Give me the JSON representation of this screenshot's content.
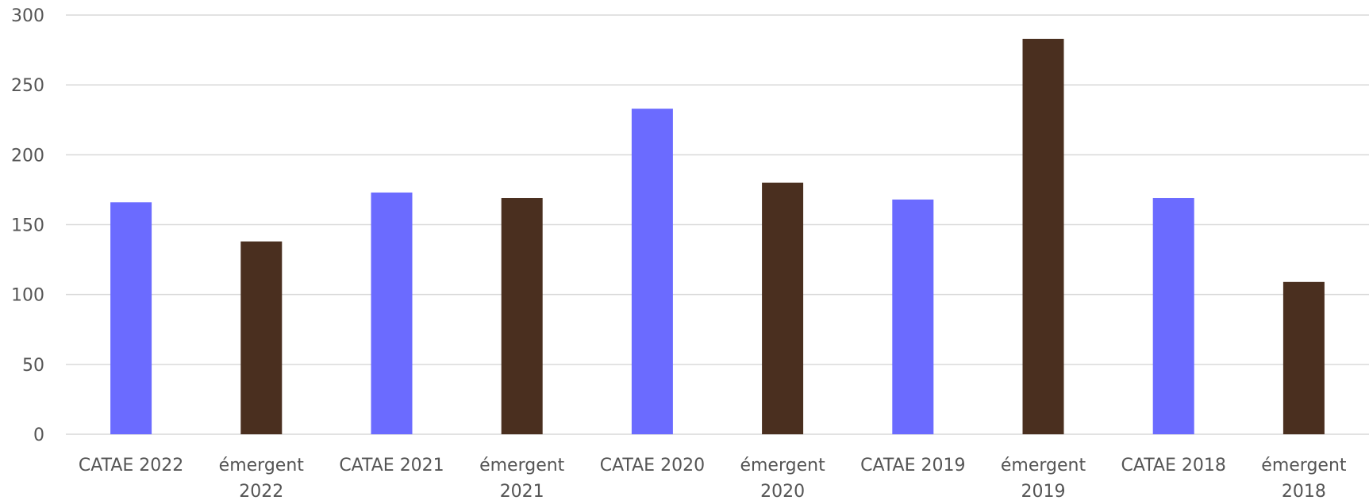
{
  "chart_data": {
    "type": "bar",
    "title": "",
    "xlabel": "",
    "ylabel": "",
    "ylim": [
      0,
      300
    ],
    "yticks": [
      0,
      50,
      100,
      150,
      200,
      250,
      300
    ],
    "grid": true,
    "legend": "none",
    "categories": [
      [
        "CATAE 2022"
      ],
      [
        "émergent",
        "2022"
      ],
      [
        "CATAE 2021"
      ],
      [
        "émergent",
        "2021"
      ],
      [
        "CATAE 2020"
      ],
      [
        "émergent",
        "2020"
      ],
      [
        "CATAE 2019"
      ],
      [
        "émergent",
        "2019"
      ],
      [
        "CATAE 2018"
      ],
      [
        "émergent",
        "2018"
      ]
    ],
    "values": [
      166,
      138,
      173,
      169,
      233,
      180,
      168,
      283,
      169,
      109
    ],
    "colors": {
      "catae": "#6b6bff",
      "emergent": "#4a2f1f",
      "grid": "#d9d9d9",
      "axis_text": "#555555"
    },
    "bar_colors": [
      "catae",
      "emergent",
      "catae",
      "emergent",
      "catae",
      "emergent",
      "catae",
      "emergent",
      "catae",
      "emergent"
    ]
  }
}
